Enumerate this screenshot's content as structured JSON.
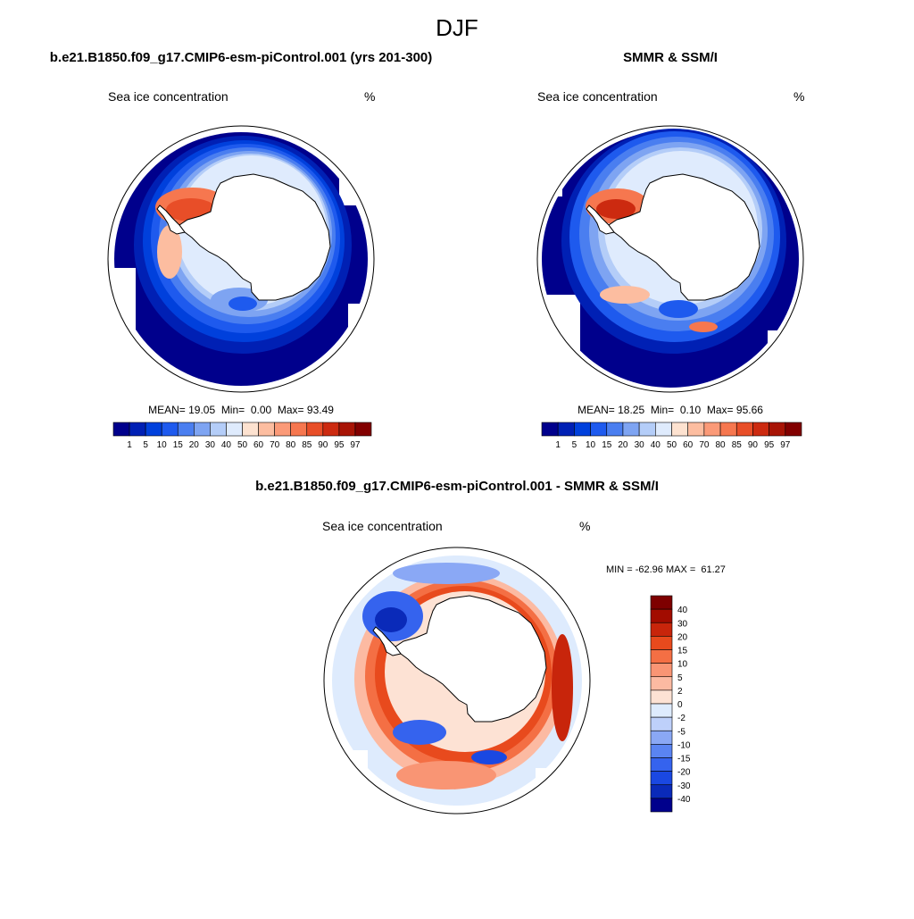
{
  "figure": {
    "season_title": "DJF"
  },
  "colors": {
    "conc": [
      "#00008c",
      "#0020b4",
      "#0040dc",
      "#1e5aee",
      "#4a7ef0",
      "#7ea4f2",
      "#b4cdf8",
      "#dfebfd",
      "#fde2d0",
      "#fcbda0",
      "#fb9a78",
      "#f6774f",
      "#e84e28",
      "#cc2a10",
      "#a81406",
      "#820000"
    ],
    "diff": [
      "#00008c",
      "#0a2ab9",
      "#1a48e2",
      "#3563ee",
      "#5a84f2",
      "#8aa8f5",
      "#bed0fa",
      "#deebfd",
      "#fde2d4",
      "#fcbaa2",
      "#f99574",
      "#f46f44",
      "#e84a1d",
      "#c8250b",
      "#a20c00",
      "#7e0000"
    ],
    "outline": "#000000",
    "land": "#ffffff"
  },
  "chart_data": [
    {
      "type": "heatmap",
      "panel": "model",
      "title": "b.e21.B1850.f09_g17.CMIP6-esm-piControl.001 (yrs 201-300)",
      "subtitle_left": "Sea ice concentration",
      "subtitle_right": "%",
      "stats": {
        "mean_label": "MEAN=",
        "mean": "19.05",
        "min_label": "Min=",
        "min": "0.00",
        "max_label": "Max=",
        "max": "93.49"
      },
      "colorbar_levels": [
        "1",
        "5",
        "10",
        "15",
        "20",
        "30",
        "40",
        "50",
        "60",
        "70",
        "80",
        "85",
        "90",
        "95",
        "97"
      ],
      "colorbar_orientation": "horizontal"
    },
    {
      "type": "heatmap",
      "panel": "observations",
      "title": "SMMR & SSM/I",
      "subtitle_left": "Sea ice concentration",
      "subtitle_right": "%",
      "stats": {
        "mean_label": "MEAN=",
        "mean": "18.25",
        "min_label": "Min=",
        "min": "0.10",
        "max_label": "Max=",
        "max": "95.66"
      },
      "colorbar_levels": [
        "1",
        "5",
        "10",
        "15",
        "20",
        "30",
        "40",
        "50",
        "60",
        "70",
        "80",
        "85",
        "90",
        "95",
        "97"
      ],
      "colorbar_orientation": "horizontal"
    },
    {
      "type": "heatmap",
      "panel": "difference",
      "title": "b.e21.B1850.f09_g17.CMIP6-esm-piControl.001 - SMMR & SSM/I",
      "subtitle_left": "Sea ice concentration",
      "subtitle_right": "%",
      "stats": {
        "text": "MIN = -62.96 MAX =  61.27"
      },
      "colorbar_levels": [
        "40",
        "30",
        "20",
        "15",
        "10",
        "5",
        "2",
        "0",
        "-2",
        "-5",
        "-10",
        "-15",
        "-20",
        "-30",
        "-40"
      ],
      "colorbar_orientation": "vertical"
    }
  ]
}
